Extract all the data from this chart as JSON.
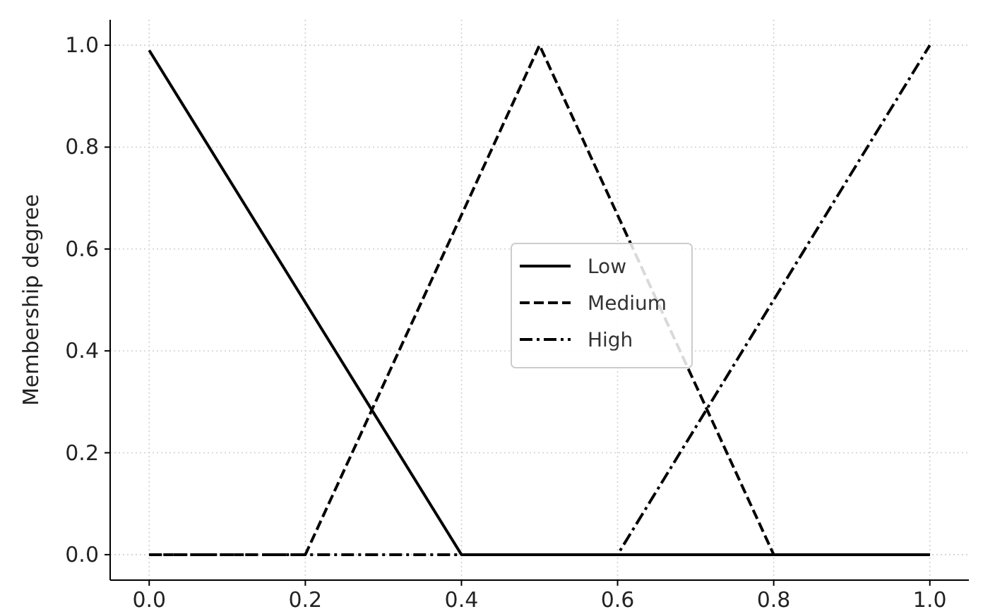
{
  "chart_data": {
    "type": "line",
    "ylabel": "Membership degree",
    "xlim": [
      -0.05,
      1.05
    ],
    "ylim": [
      -0.05,
      1.05
    ],
    "xticks": [
      {
        "value": 0,
        "label": "0.0"
      },
      0.2,
      0.4,
      0.6,
      0.8,
      {
        "value": 1,
        "label": "1.0"
      }
    ],
    "yticks": [
      {
        "value": 0,
        "label": "0.0"
      },
      0.2,
      0.4,
      0.6,
      0.8,
      {
        "value": 1,
        "label": "1.0"
      }
    ],
    "grid": true,
    "legend": "center",
    "series": [
      {
        "name": "Low",
        "color": "#000000",
        "line_style": "solid",
        "x": [
          0,
          0.4,
          1
        ],
        "values": [
          0.99,
          0,
          0
        ]
      },
      {
        "name": "Medium",
        "color": "#000000",
        "line_style": "dashed",
        "x": [
          0,
          0.2,
          0.5,
          0.8,
          1
        ],
        "values": [
          0,
          0,
          1,
          0,
          0
        ]
      },
      {
        "name": "High",
        "color": "#000000",
        "line_style": "dashdot",
        "x": [
          0,
          0.6,
          1
        ],
        "values": [
          0,
          0,
          1
        ]
      }
    ]
  }
}
